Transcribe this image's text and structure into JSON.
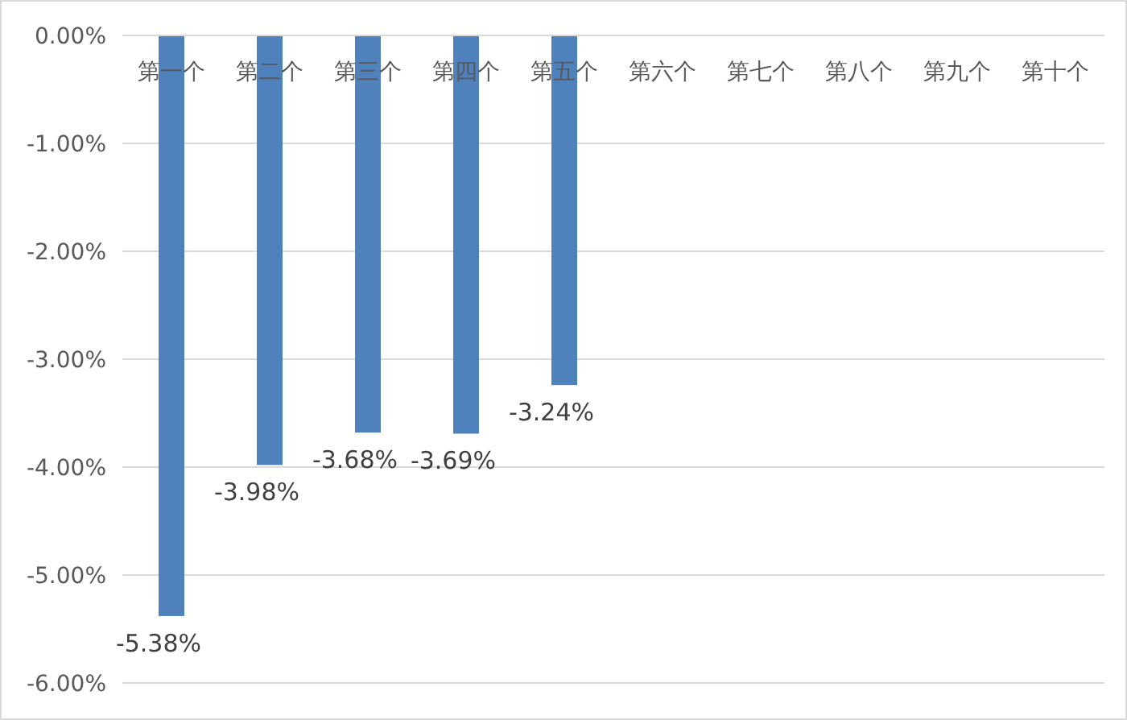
{
  "chart_data": {
    "type": "bar",
    "categories": [
      "第一个",
      "第二个",
      "第三个",
      "第四个",
      "第五个",
      "第六个",
      "第七个",
      "第八个",
      "第九个",
      "第十个"
    ],
    "values": [
      -5.38,
      -3.98,
      -3.68,
      -3.69,
      -3.24,
      null,
      null,
      null,
      null,
      null
    ],
    "value_labels": [
      "-5.38%",
      "-3.98%",
      "-3.68%",
      "-3.69%",
      "-3.24%",
      null,
      null,
      null,
      null,
      null
    ],
    "color": "#4f81bd",
    "ylim": [
      -6,
      0
    ],
    "yticks": [
      {
        "value": 0,
        "label": "0.00%"
      },
      {
        "value": -1,
        "label": "-1.00%"
      },
      {
        "value": -2,
        "label": "-2.00%"
      },
      {
        "value": -3,
        "label": "-3.00%"
      },
      {
        "value": -4,
        "label": "-4.00%"
      },
      {
        "value": -5,
        "label": "-5.00%"
      },
      {
        "value": -6,
        "label": "-6.00%"
      }
    ],
    "grid": "y"
  }
}
